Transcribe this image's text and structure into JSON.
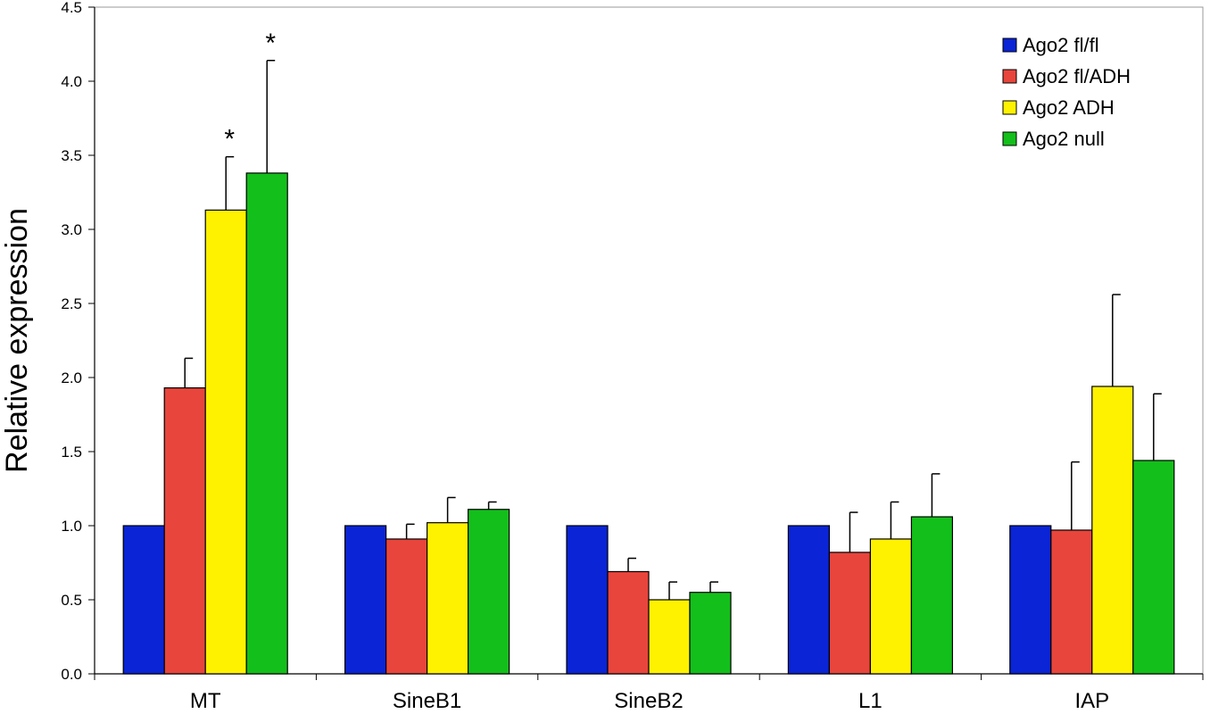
{
  "chart_data": {
    "type": "bar",
    "title": "",
    "xlabel": "",
    "ylabel": "Relative expression",
    "ylim": [
      0,
      4.5
    ],
    "yticks": [
      "0.0",
      "0.5",
      "1.0",
      "1.5",
      "2.0",
      "2.5",
      "3.0",
      "3.5",
      "4.0",
      "4.5"
    ],
    "grid": false,
    "legend_position": "top-right",
    "categories": [
      "MT",
      "SineB1",
      "SineB2",
      "L1",
      "IAP"
    ],
    "series": [
      {
        "name": "Ago2 fl/fl",
        "color": "#0a24d6",
        "values": [
          1.0,
          1.0,
          1.0,
          1.0,
          1.0
        ],
        "errors": [
          0,
          0,
          0,
          0,
          0
        ]
      },
      {
        "name": "Ago2 fl/ADH",
        "color": "#e8453c",
        "values": [
          1.93,
          0.91,
          0.69,
          0.82,
          0.97
        ],
        "errors": [
          0.2,
          0.1,
          0.09,
          0.27,
          0.46
        ]
      },
      {
        "name": "Ago2 ADH",
        "color": "#fff200",
        "values": [
          3.13,
          1.02,
          0.5,
          0.91,
          1.94
        ],
        "errors": [
          0.36,
          0.17,
          0.12,
          0.25,
          0.62
        ]
      },
      {
        "name": "Ago2 null",
        "color": "#13bf1a",
        "values": [
          3.38,
          1.11,
          0.55,
          1.06,
          1.44
        ],
        "errors": [
          0.76,
          0.05,
          0.07,
          0.29,
          0.45
        ]
      }
    ],
    "annotations": [
      {
        "text": "*",
        "category": "MT",
        "series": "Ago2 ADH"
      },
      {
        "text": "*",
        "category": "MT",
        "series": "Ago2 null"
      }
    ]
  }
}
